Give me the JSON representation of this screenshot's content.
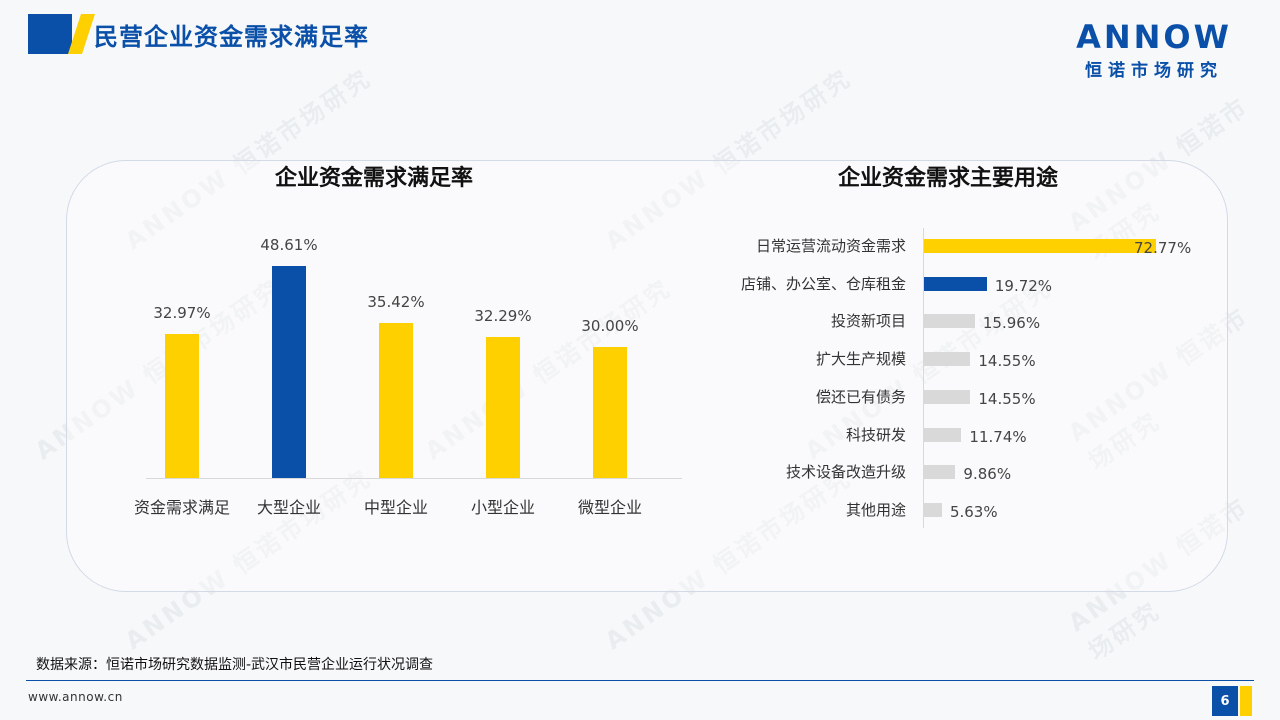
{
  "header": {
    "title": "民营企业资金需求满足率",
    "logo_word": "ANNOW",
    "logo_sub": "恒诺市场研究"
  },
  "colors": {
    "brand_blue": "#0a4fa8",
    "brand_yellow": "#ffd000",
    "neutral_bar": "#d9d9d9"
  },
  "chart_data": [
    {
      "type": "bar",
      "title": "企业资金需求满足率",
      "categories": [
        "资金需求满足",
        "大型企业",
        "中型企业",
        "小型企业",
        "微型企业"
      ],
      "values": [
        32.97,
        48.61,
        35.42,
        32.29,
        30.0
      ],
      "value_labels": [
        "32.97%",
        "48.61%",
        "35.42%",
        "32.29%",
        "30.00%"
      ],
      "bar_colors": [
        "#ffd000",
        "#0a4fa8",
        "#ffd000",
        "#ffd000",
        "#ffd000"
      ],
      "ylim": [
        0,
        60
      ],
      "grid": false
    },
    {
      "type": "bar",
      "orientation": "horizontal",
      "title": "企业资金需求主要用途",
      "categories": [
        "日常运营流动资金需求",
        "店铺、办公室、仓库租金",
        "投资新项目",
        "扩大生产规模",
        "偿还已有债务",
        "科技研发",
        "技术设备改造升级",
        "其他用途"
      ],
      "values": [
        72.77,
        19.72,
        15.96,
        14.55,
        14.55,
        11.74,
        9.86,
        5.63
      ],
      "value_labels": [
        "72.77%",
        "19.72%",
        "15.96%",
        "14.55%",
        "14.55%",
        "11.74%",
        "9.86%",
        "5.63%"
      ],
      "bar_colors": [
        "#ffd000",
        "#0a4fa8",
        "#d9d9d9",
        "#d9d9d9",
        "#d9d9d9",
        "#d9d9d9",
        "#d9d9d9",
        "#d9d9d9"
      ],
      "xlim": [
        0,
        80
      ],
      "grid": false
    }
  ],
  "footer": {
    "source": "数据来源：恒诺市场研究数据监测-武汉市民营企业运行状况调查",
    "website": "www.annow.cn",
    "page_number": "6"
  },
  "watermark": "ANNOW 恒诺市场研究"
}
